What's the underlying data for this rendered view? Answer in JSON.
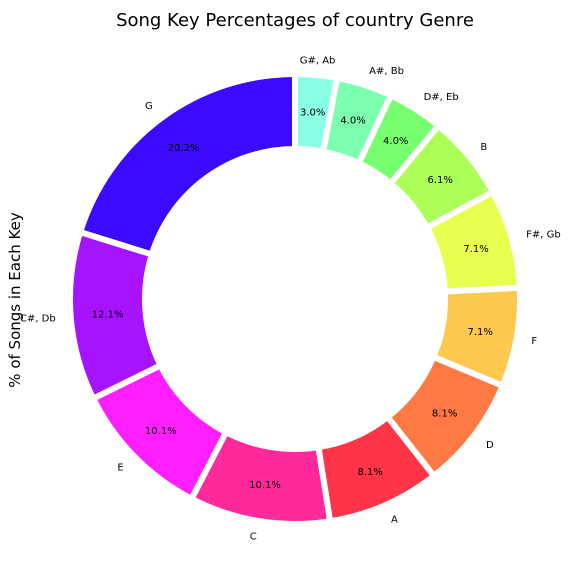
{
  "chart_data": {
    "type": "pie",
    "style": "donut",
    "title": "Song Key Percentages of country Genre",
    "ylabel": "% of Songs in Each Key",
    "slices": [
      {
        "label": "G",
        "pct_label": "20.2%",
        "value": 20.2,
        "color": "#3a0bff"
      },
      {
        "label": "C#, Db",
        "pct_label": "12.1%",
        "value": 12.1,
        "color": "#a712ff"
      },
      {
        "label": "E",
        "pct_label": "10.1%",
        "value": 10.1,
        "color": "#fe1eff"
      },
      {
        "label": "C",
        "pct_label": "10.1%",
        "value": 10.1,
        "color": "#fe2a9c"
      },
      {
        "label": "A",
        "pct_label": "8.1%",
        "value": 8.1,
        "color": "#ff3448"
      },
      {
        "label": "D",
        "pct_label": "8.1%",
        "value": 8.1,
        "color": "#ff7944"
      },
      {
        "label": "F",
        "pct_label": "7.1%",
        "value": 7.1,
        "color": "#ffc84e"
      },
      {
        "label": "F#, Gb",
        "pct_label": "7.1%",
        "value": 7.1,
        "color": "#e8ff50"
      },
      {
        "label": "B",
        "pct_label": "6.1%",
        "value": 6.1,
        "color": "#acff58"
      },
      {
        "label": "D#, Eb",
        "pct_label": "4.0%",
        "value": 4.0,
        "color": "#78ff6f"
      },
      {
        "label": "A#, Bb",
        "pct_label": "4.0%",
        "value": 4.0,
        "color": "#7cffae"
      },
      {
        "label": "G#, Ab",
        "pct_label": "3.0%",
        "value": 3.0,
        "color": "#8affe4"
      }
    ],
    "start_angle_deg": 90,
    "direction": "counterclockwise",
    "legend": "none",
    "grid": false
  }
}
